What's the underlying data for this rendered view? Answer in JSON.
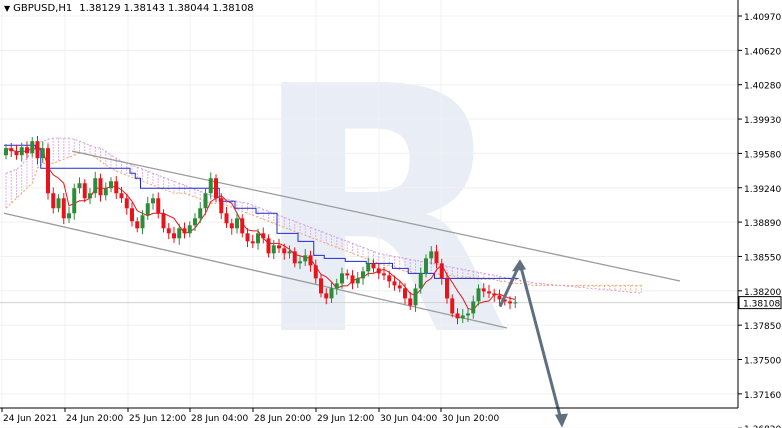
{
  "header": {
    "symbol": "GBPUSD,H1",
    "open": "1.38129",
    "high": "1.38143",
    "low": "1.38044",
    "close": "1.38108"
  },
  "watermark": "R",
  "colors": {
    "bull_candle": "#2e8b3a",
    "bear_candle": "#e8141c",
    "kijun": "#1d2bd6",
    "tenkan": "#e8141c",
    "cloud_bull": "#f7a35c",
    "cloud_bear": "#d79be5",
    "channel": "#9a9a9a",
    "arrow": "#5f6f80",
    "price_tag_bg": "#ffffff"
  },
  "chart_data": {
    "type": "candlestick",
    "symbol": "GBPUSD,H1",
    "current_price": "1.38108",
    "y_ticks": [
      "1.40970",
      "1.40620",
      "1.40280",
      "1.39930",
      "1.39580",
      "1.39240",
      "1.38890",
      "1.38550",
      "1.38200",
      "1.37850",
      "1.37500",
      "1.37160",
      "1.36820"
    ],
    "x_ticks": [
      "24 Jun 2021",
      "24 Jun 20:00",
      "25 Jun 12:00",
      "28 Jun 04:00",
      "28 Jun 20:00",
      "29 Jun 12:00",
      "30 Jun 04:00",
      "30 Jun 20:00"
    ],
    "ylim": [
      1.3665,
      1.4115
    ],
    "closes": [
      1.3965,
      1.3962,
      1.3958,
      1.3966,
      1.396,
      1.3972,
      1.3955,
      1.3965,
      1.392,
      1.3905,
      1.3915,
      1.3895,
      1.39,
      1.3925,
      1.393,
      1.3915,
      1.392,
      1.3935,
      1.3918,
      1.3925,
      1.3932,
      1.392,
      1.3915,
      1.3905,
      1.3892,
      1.3885,
      1.3898,
      1.391,
      1.3915,
      1.39,
      1.3885,
      1.388,
      1.3875,
      1.3885,
      1.388,
      1.3888,
      1.3895,
      1.3905,
      1.392,
      1.3935,
      1.3915,
      1.39,
      1.389,
      1.3885,
      1.3895,
      1.388,
      1.3872,
      1.387,
      1.388,
      1.3875,
      1.386,
      1.3868,
      1.3865,
      1.386,
      1.3862,
      1.385,
      1.3852,
      1.3858,
      1.3848,
      1.3835,
      1.382,
      1.3815,
      1.3825,
      1.383,
      1.384,
      1.3838,
      1.383,
      1.3835,
      1.3842,
      1.385,
      1.3845,
      1.384,
      1.3838,
      1.3832,
      1.3828,
      1.3825,
      1.3815,
      1.3808,
      1.3825,
      1.384,
      1.3855,
      1.3862,
      1.385,
      1.3835,
      1.3815,
      1.38,
      1.3795,
      1.3798,
      1.38,
      1.3812,
      1.3825,
      1.3822,
      1.382,
      1.3818,
      1.3814,
      1.3812,
      1.381,
      1.3811
    ],
    "kijun": [
      1.3968,
      1.3968,
      1.3968,
      1.3968,
      1.3968,
      1.3968,
      1.3965,
      1.3945,
      1.3945,
      1.3945,
      1.3945,
      1.3945,
      1.3945,
      1.3945,
      1.3945,
      1.3945,
      1.3945,
      1.3945,
      1.3945,
      1.3945,
      1.3945,
      1.3945,
      1.3945,
      1.3945,
      1.394,
      1.3935,
      1.3925,
      1.3925,
      1.3925,
      1.3925,
      1.3925,
      1.3925,
      1.3925,
      1.3925,
      1.3925,
      1.3925,
      1.3925,
      1.3925,
      1.3925,
      1.3925,
      1.3925,
      1.3912,
      1.3912,
      1.3912,
      1.3905,
      1.3905,
      1.3905,
      1.3905,
      1.39,
      1.39,
      1.39,
      1.39,
      1.388,
      1.388,
      1.388,
      1.388,
      1.3872,
      1.3872,
      1.3872,
      1.3858,
      1.3858,
      1.3855,
      1.3855,
      1.3855,
      1.3855,
      1.3852,
      1.3852,
      1.3852,
      1.3852,
      1.385,
      1.385,
      1.385,
      1.385,
      1.385,
      1.3845,
      1.3845,
      1.3845,
      1.384,
      1.384,
      1.384,
      1.384,
      1.384,
      1.3835,
      1.3835,
      1.3835,
      1.3835,
      1.3835,
      1.3835,
      1.3835,
      1.3835,
      1.3835,
      1.3835,
      1.3835,
      1.3835,
      1.3835,
      1.3835,
      1.3835,
      1.3835
    ],
    "cloud_a": [
      1.3905,
      1.391,
      1.3915,
      1.392,
      1.3925,
      1.393,
      1.3945,
      1.395,
      1.395,
      1.395,
      1.3952,
      1.3954,
      1.3956,
      1.3958,
      1.396,
      1.396,
      1.3958,
      1.3956,
      1.3952,
      1.3948,
      1.3945,
      1.3942,
      1.394,
      1.3938,
      1.3936,
      1.3934,
      1.3932,
      1.393,
      1.3928,
      1.3926,
      1.3924,
      1.3922,
      1.392,
      1.392,
      1.392,
      1.3918,
      1.3916,
      1.3914,
      1.3912,
      1.391,
      1.391,
      1.391,
      1.3908,
      1.3906,
      1.3904,
      1.3902,
      1.39,
      1.3898,
      1.3896,
      1.3894,
      1.3892,
      1.389,
      1.3888,
      1.3886,
      1.3884,
      1.3882,
      1.388,
      1.3878,
      1.3876,
      1.3874,
      1.3872,
      1.387,
      1.3868,
      1.3866,
      1.3864,
      1.3862,
      1.386,
      1.3858,
      1.3856,
      1.3854,
      1.3852,
      1.385,
      1.3848,
      1.3848,
      1.3846,
      1.3844,
      1.3842,
      1.3842,
      1.384,
      1.384,
      1.384,
      1.384,
      1.384,
      1.3838,
      1.3838,
      1.3838,
      1.3836,
      1.3836,
      1.3836,
      1.3836,
      1.3834,
      1.3834,
      1.3834,
      1.3834,
      1.3832,
      1.3832,
      1.383,
      1.383,
      1.383,
      1.383,
      1.3828,
      1.3828,
      1.3828,
      1.3828,
      1.3828,
      1.3828,
      1.3828,
      1.3828,
      1.3828,
      1.3828,
      1.3828,
      1.3828,
      1.3828,
      1.3828,
      1.3828,
      1.3828,
      1.3828,
      1.3828,
      1.3828,
      1.3828,
      1.3828,
      1.3828
    ],
    "cloud_b": [
      1.394,
      1.3942,
      1.3944,
      1.3948,
      1.3955,
      1.3962,
      1.397,
      1.3972,
      1.3974,
      1.3975,
      1.3975,
      1.3975,
      1.3975,
      1.3974,
      1.3972,
      1.397,
      1.3968,
      1.3966,
      1.3965,
      1.3962,
      1.3958,
      1.3955,
      1.3952,
      1.395,
      1.3948,
      1.3946,
      1.3944,
      1.3942,
      1.394,
      1.3938,
      1.3936,
      1.3934,
      1.3932,
      1.393,
      1.3928,
      1.3926,
      1.3924,
      1.3922,
      1.392,
      1.3918,
      1.3916,
      1.3915,
      1.3914,
      1.3913,
      1.3912,
      1.3911,
      1.391,
      1.3908,
      1.3906,
      1.3904,
      1.3902,
      1.39,
      1.3898,
      1.3896,
      1.3894,
      1.3892,
      1.389,
      1.3888,
      1.3886,
      1.3884,
      1.3882,
      1.388,
      1.3878,
      1.3876,
      1.3874,
      1.3872,
      1.387,
      1.3868,
      1.3866,
      1.3864,
      1.3862,
      1.386,
      1.3859,
      1.3858,
      1.3857,
      1.3856,
      1.3855,
      1.3854,
      1.3853,
      1.3852,
      1.3851,
      1.385,
      1.3849,
      1.3848,
      1.3847,
      1.3846,
      1.3845,
      1.3844,
      1.3843,
      1.3842,
      1.3841,
      1.384,
      1.3839,
      1.3838,
      1.3837,
      1.3836,
      1.3835,
      1.3834,
      1.3833,
      1.3832,
      1.3831,
      1.383,
      1.383,
      1.3829,
      1.3829,
      1.3828,
      1.3828,
      1.3827,
      1.3827,
      1.3826,
      1.3826,
      1.3825,
      1.3825,
      1.3824,
      1.3824,
      1.3823,
      1.3823,
      1.3822,
      1.3822,
      1.3821,
      1.3821,
      1.382
    ],
    "channel_upper": [
      [
        1.3962,
        13
      ],
      [
        1.3816,
        85
      ]
    ],
    "channel_lower": [
      [
        1.39,
        0
      ],
      [
        1.3765,
        63
      ]
    ],
    "forecast": [
      1.38108,
      1.385,
      1.369
    ]
  }
}
